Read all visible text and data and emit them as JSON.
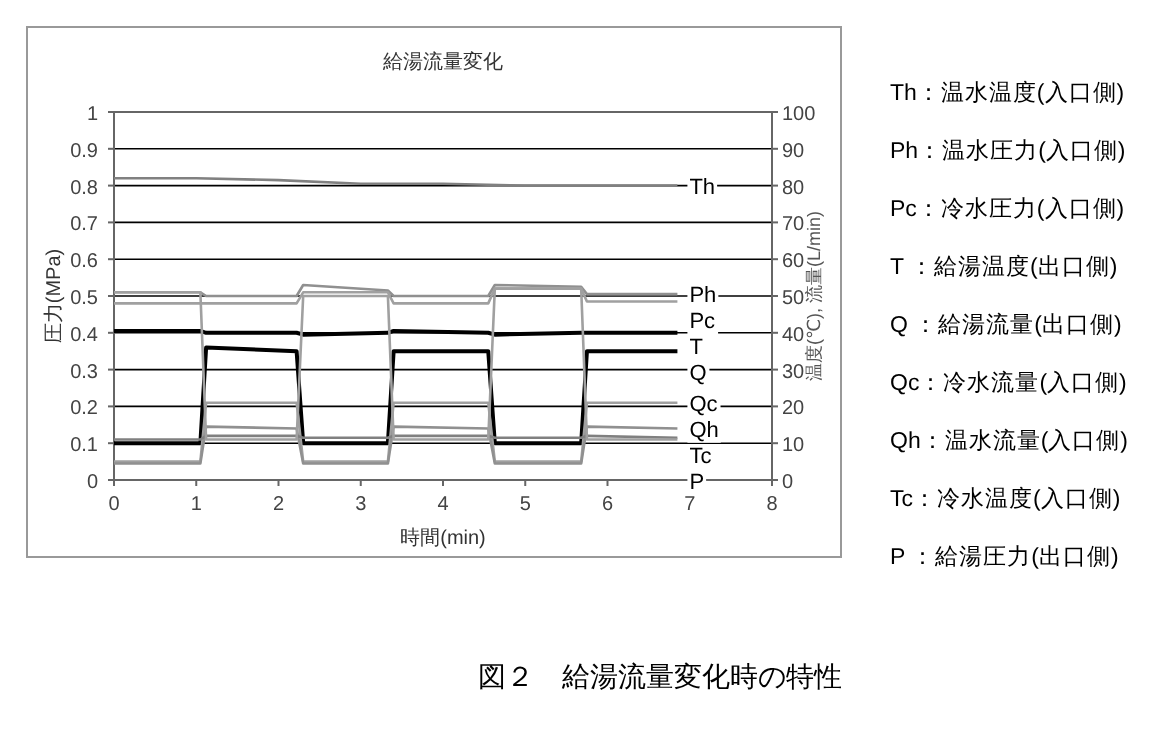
{
  "chart_data": {
    "type": "line",
    "title": "給湯流量変化",
    "xlabel": "時間(min)",
    "ylabel": "圧力(MPa)",
    "y2label": "温度(℃), 流量(L/min)",
    "xlim": [
      0,
      8
    ],
    "xticks": [
      0,
      1,
      2,
      3,
      4,
      5,
      6,
      7,
      8
    ],
    "ylim": [
      0,
      1
    ],
    "yticks": [
      0,
      0.1,
      0.2,
      0.3,
      0.4,
      0.5,
      0.6,
      0.7,
      0.8,
      0.9,
      1
    ],
    "y2lim": [
      0,
      100
    ],
    "y2ticks": [
      0,
      10,
      20,
      30,
      40,
      50,
      60,
      70,
      80,
      90,
      100
    ],
    "grid": "y",
    "series": [
      {
        "name": "Th",
        "color": "#808080",
        "axis": "y2",
        "x": [
          0,
          1,
          2,
          3,
          4,
          5,
          6,
          6.85
        ],
        "values": [
          82,
          82,
          81.5,
          80.5,
          80.5,
          80,
          80,
          80
        ]
      },
      {
        "name": "Ph",
        "color": "#909090",
        "x": [
          0,
          1.05,
          1.12,
          2.22,
          2.3,
          3.33,
          3.4,
          4.55,
          4.63,
          5.68,
          5.75,
          6.85
        ],
        "values": [
          0.51,
          0.51,
          0.5,
          0.5,
          0.53,
          0.515,
          0.5,
          0.5,
          0.53,
          0.525,
          0.505,
          0.505
        ]
      },
      {
        "name": "Pc",
        "color": "#a0a0a0",
        "x": [
          0,
          1.05,
          1.12,
          2.22,
          2.3,
          3.33,
          3.4,
          4.55,
          4.63,
          5.68,
          5.75,
          6.85
        ],
        "values": [
          0.48,
          0.48,
          0.48,
          0.48,
          0.51,
          0.51,
          0.48,
          0.48,
          0.52,
          0.52,
          0.485,
          0.485
        ]
      },
      {
        "name": "T",
        "color": "#000000",
        "axis": "y2",
        "x": [
          0,
          1.05,
          1.12,
          2.22,
          2.3,
          3.33,
          3.4,
          4.55,
          4.63,
          5.68,
          5.75,
          6.85
        ],
        "values": [
          40.5,
          40.5,
          40,
          40,
          39.5,
          40,
          40.5,
          40,
          39.5,
          40,
          40,
          40
        ]
      },
      {
        "name": "Q",
        "color": "#000000",
        "axis": "y2",
        "x": [
          0,
          1.05,
          1.12,
          2.22,
          2.3,
          3.33,
          3.4,
          4.55,
          4.63,
          5.68,
          5.75,
          6.85
        ],
        "values": [
          10,
          10,
          36,
          35,
          10,
          10,
          35,
          35,
          10,
          10,
          35,
          35
        ]
      },
      {
        "name": "Qc",
        "color": "#a0a0a0",
        "axis": "y2",
        "x": [
          0,
          1.05,
          1.12,
          2.22,
          2.3,
          3.33,
          3.4,
          4.55,
          4.63,
          5.68,
          5.75,
          6.85
        ],
        "values": [
          5,
          5,
          21,
          21,
          5,
          5,
          21,
          21,
          5,
          5,
          21,
          21
        ]
      },
      {
        "name": "Qh",
        "color": "#909090",
        "axis": "y2",
        "x": [
          0,
          1.05,
          1.12,
          2.22,
          2.3,
          3.33,
          3.4,
          4.55,
          4.63,
          5.68,
          5.75,
          6.85
        ],
        "values": [
          4.5,
          4.5,
          14.5,
          14,
          4.5,
          4.5,
          14.5,
          14,
          4.5,
          4.5,
          14.5,
          14
        ]
      },
      {
        "name": "Tc",
        "color": "#808080",
        "axis": "y2",
        "x": [
          0,
          1.05,
          1.12,
          2.22,
          2.3,
          3.33,
          3.4,
          4.55,
          4.63,
          5.68,
          5.75,
          6.85
        ],
        "values": [
          11,
          11,
          12,
          12,
          11.5,
          11.5,
          12,
          12,
          11.5,
          11.5,
          12,
          11.5
        ]
      },
      {
        "name": "P",
        "color": "#a0a0a0",
        "x": [
          0,
          1.05,
          1.12,
          2.22,
          2.3,
          3.33,
          3.4,
          4.55,
          4.63,
          5.68,
          5.75,
          6.85
        ],
        "values": [
          0.51,
          0.51,
          0.11,
          0.11,
          0.5,
          0.5,
          0.11,
          0.11,
          0.52,
          0.52,
          0.11,
          0.11
        ]
      }
    ],
    "annotations": [
      "Th：温水温度(入口側)",
      "Ph：温水圧力(入口側)",
      "Pc：冷水圧力(入口側)",
      "T ：給湯温度(出口側)",
      "Q ：給湯流量(出口側)",
      "Qc：冷水流量(入口側)",
      "Qh：温水流量(入口側)",
      "Tc：冷水温度(入口側)",
      "P ：給湯圧力(出口側)",
      "図２　給湯流量変化時の特性"
    ]
  }
}
